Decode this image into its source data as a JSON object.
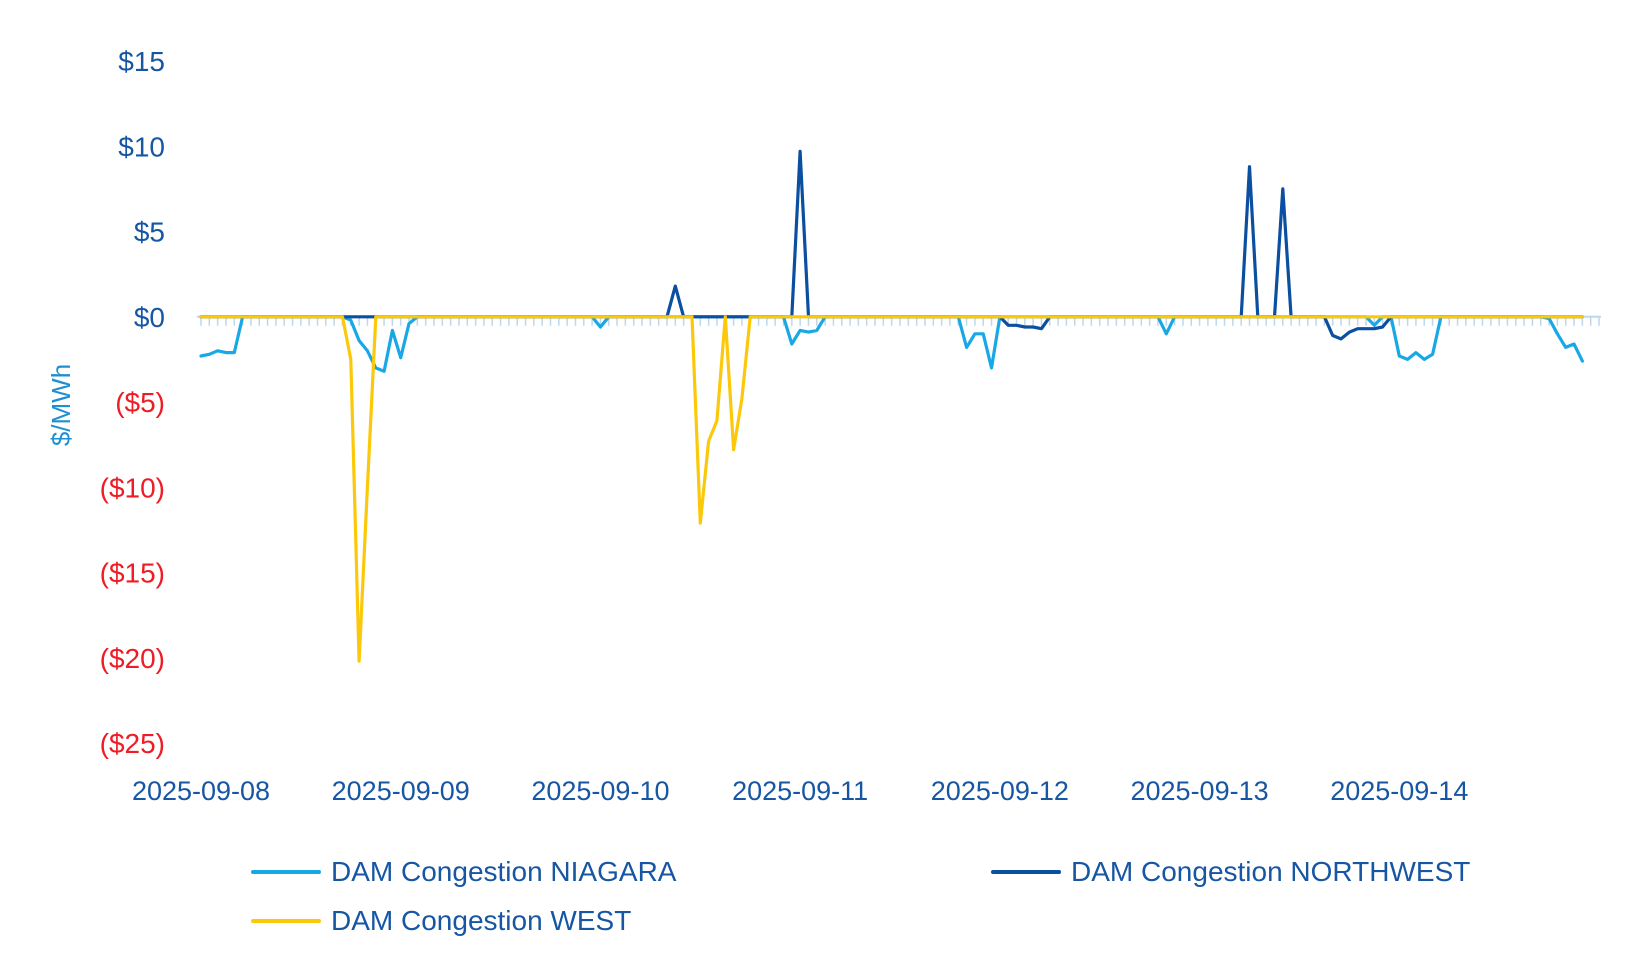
{
  "chart_data": {
    "type": "line",
    "ylabel": "$/MWh",
    "ylim": [
      -25,
      15
    ],
    "y_ticks": [
      {
        "value": 15,
        "label": "$15"
      },
      {
        "value": 10,
        "label": "$10"
      },
      {
        "value": 5,
        "label": "$5"
      },
      {
        "value": 0,
        "label": "$0"
      },
      {
        "value": -5,
        "label": "($5)"
      },
      {
        "value": -10,
        "label": "($10)"
      },
      {
        "value": -15,
        "label": "($15)"
      },
      {
        "value": -20,
        "label": "($20)"
      },
      {
        "value": -25,
        "label": "($25)"
      }
    ],
    "x_tick_labels": [
      "2025-09-08",
      "2025-09-09",
      "2025-09-10",
      "2025-09-11",
      "2025-09-12",
      "2025-09-13",
      "2025-09-14"
    ],
    "x_tick_hours": [
      0,
      24,
      48,
      72,
      96,
      120,
      144
    ],
    "x_hours_total": 168,
    "legend_position": "bottom",
    "grid": false,
    "colors": {
      "positive_tick": "#1656a3",
      "negative_tick": "#ee1c25",
      "ylabel": "#1e8fd2",
      "xtick": "#1656a3",
      "zero_line": "#bcd7ee"
    },
    "series": [
      {
        "name": "DAM Congestion NIAGARA",
        "color": "#19a8e6",
        "points": [
          [
            0,
            -2.3
          ],
          [
            1,
            -2.2
          ],
          [
            2,
            -2.0
          ],
          [
            3,
            -2.1
          ],
          [
            4,
            -2.1
          ],
          [
            5,
            0
          ],
          [
            17,
            0
          ],
          [
            18,
            -0.2
          ],
          [
            19,
            -1.4
          ],
          [
            20,
            -2.0
          ],
          [
            21,
            -3.0
          ],
          [
            22,
            -3.2
          ],
          [
            23,
            -0.8
          ],
          [
            24,
            -2.4
          ],
          [
            25,
            -0.4
          ],
          [
            26,
            0
          ],
          [
            47,
            0
          ],
          [
            48,
            -0.6
          ],
          [
            49,
            0
          ],
          [
            70,
            0
          ],
          [
            71,
            -1.6
          ],
          [
            72,
            -0.8
          ],
          [
            73,
            -0.9
          ],
          [
            74,
            -0.8
          ],
          [
            75,
            0
          ],
          [
            91,
            0
          ],
          [
            92,
            -1.8
          ],
          [
            93,
            -1.0
          ],
          [
            94,
            -1.0
          ],
          [
            95,
            -3.0
          ],
          [
            96,
            0
          ],
          [
            115,
            0
          ],
          [
            116,
            -1.0
          ],
          [
            117,
            0
          ],
          [
            140,
            0
          ],
          [
            141,
            -0.5
          ],
          [
            142,
            0
          ],
          [
            143,
            0
          ],
          [
            144,
            -2.3
          ],
          [
            145,
            -2.5
          ],
          [
            146,
            -2.1
          ],
          [
            147,
            -2.5
          ],
          [
            148,
            -2.2
          ],
          [
            149,
            0
          ],
          [
            161,
            0
          ],
          [
            162,
            -0.1
          ],
          [
            163,
            -1.0
          ],
          [
            164,
            -1.8
          ],
          [
            165,
            -1.6
          ],
          [
            166,
            -2.6
          ]
        ]
      },
      {
        "name": "DAM Congestion NORTHWEST",
        "color": "#0b4fa0",
        "points": [
          [
            0,
            0
          ],
          [
            56,
            0
          ],
          [
            57,
            1.8
          ],
          [
            58,
            0
          ],
          [
            71,
            0
          ],
          [
            72,
            9.7
          ],
          [
            73,
            0
          ],
          [
            96,
            0
          ],
          [
            97,
            -0.5
          ],
          [
            98,
            -0.5
          ],
          [
            99,
            -0.6
          ],
          [
            100,
            -0.6
          ],
          [
            101,
            -0.7
          ],
          [
            102,
            0
          ],
          [
            125,
            0
          ],
          [
            126,
            8.8
          ],
          [
            127,
            0
          ],
          [
            129,
            0
          ],
          [
            130,
            7.5
          ],
          [
            131,
            0
          ],
          [
            135,
            0
          ],
          [
            136,
            -1.1
          ],
          [
            137,
            -1.3
          ],
          [
            138,
            -0.9
          ],
          [
            139,
            -0.7
          ],
          [
            140,
            -0.7
          ],
          [
            141,
            -0.7
          ],
          [
            142,
            -0.6
          ],
          [
            143,
            0
          ],
          [
            166,
            0
          ]
        ]
      },
      {
        "name": "DAM Congestion WEST",
        "color": "#fcc80a",
        "points": [
          [
            0,
            0
          ],
          [
            17,
            0
          ],
          [
            18,
            -2.5
          ],
          [
            19,
            -20.2
          ],
          [
            20,
            -10.0
          ],
          [
            21,
            0
          ],
          [
            59,
            0
          ],
          [
            60,
            -12.1
          ],
          [
            61,
            -7.3
          ],
          [
            62,
            -6.1
          ],
          [
            63,
            0
          ],
          [
            64,
            -7.8
          ],
          [
            65,
            -4.8
          ],
          [
            66,
            0
          ],
          [
            166,
            0
          ]
        ]
      }
    ]
  }
}
